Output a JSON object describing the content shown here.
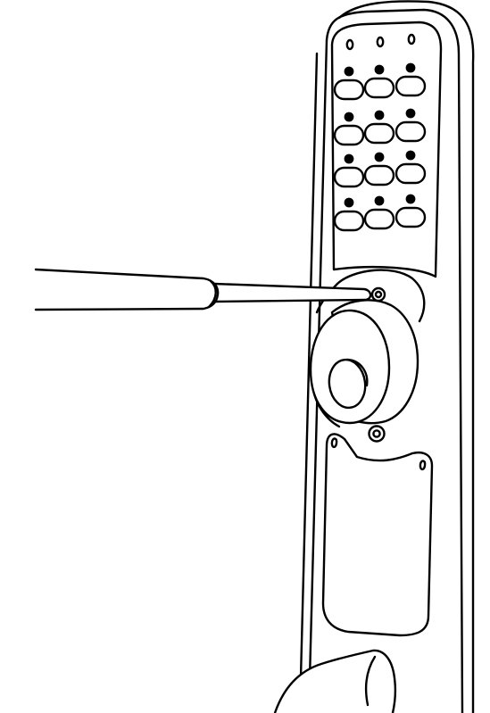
{
  "figure": {
    "ink_color": "#000000",
    "paper_color": "#ffffff",
    "style": "black-and-white line drawing",
    "icons": [
      "keypad-lock-icon",
      "screwdriver-icon",
      "lock-knob-icon",
      "key-cylinder-icon",
      "hand-icon"
    ]
  },
  "keypad": {
    "rows": 4,
    "columns": 3,
    "status_lights": 3
  }
}
